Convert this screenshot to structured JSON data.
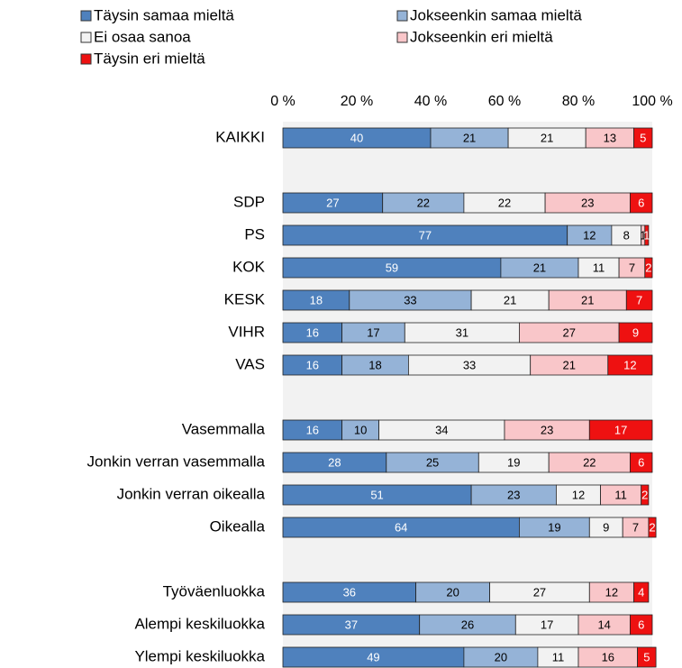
{
  "chart_data": {
    "type": "stacked_barh",
    "categories": [
      "KAIKKI",
      null,
      "SDP",
      "PS",
      "KOK",
      "KESK",
      "VIHR",
      "VAS",
      null,
      "Vasemmalla",
      "Jonkin verran vasemmalla",
      "Jonkin verran oikealla",
      "Oikealla",
      null,
      "Työväenluokka",
      "Alempi keskiluokka",
      "Ylempi keskiluokka"
    ],
    "series": [
      {
        "name": "Täysin samaa mieltä",
        "color": "#4f81bd",
        "values": [
          40,
          null,
          27,
          77,
          59,
          18,
          16,
          16,
          null,
          16,
          28,
          51,
          64,
          null,
          36,
          37,
          49
        ]
      },
      {
        "name": "Jokseenkin samaa mieltä",
        "color": "#95b3d7",
        "values": [
          21,
          null,
          22,
          12,
          21,
          33,
          17,
          18,
          null,
          10,
          25,
          23,
          19,
          null,
          20,
          26,
          20
        ]
      },
      {
        "name": "Ei osaa sanoa",
        "color": "#f2f2f2",
        "values": [
          21,
          null,
          22,
          8,
          11,
          21,
          31,
          33,
          null,
          34,
          19,
          12,
          9,
          null,
          27,
          17,
          11
        ]
      },
      {
        "name": "Jokseenkin eri mieltä",
        "color": "#f9c6c9",
        "values": [
          13,
          null,
          23,
          1,
          7,
          21,
          27,
          21,
          null,
          23,
          22,
          11,
          7,
          null,
          12,
          14,
          16
        ]
      },
      {
        "name": "Täysin eri mieltä",
        "color": "#ee1111",
        "values": [
          5,
          null,
          6,
          1,
          2,
          7,
          9,
          12,
          null,
          17,
          6,
          2,
          2,
          null,
          4,
          6,
          5
        ]
      }
    ],
    "xlim": [
      0,
      100
    ],
    "xticks": [
      {
        "value": 0,
        "label": "0 %"
      },
      {
        "value": 20,
        "label": "20 %"
      },
      {
        "value": 40,
        "label": "40 %"
      },
      {
        "value": 60,
        "label": "60 %"
      },
      {
        "value": 80,
        "label": "80 %"
      },
      {
        "value": 100,
        "label": "100 %"
      }
    ],
    "legend": "top"
  }
}
